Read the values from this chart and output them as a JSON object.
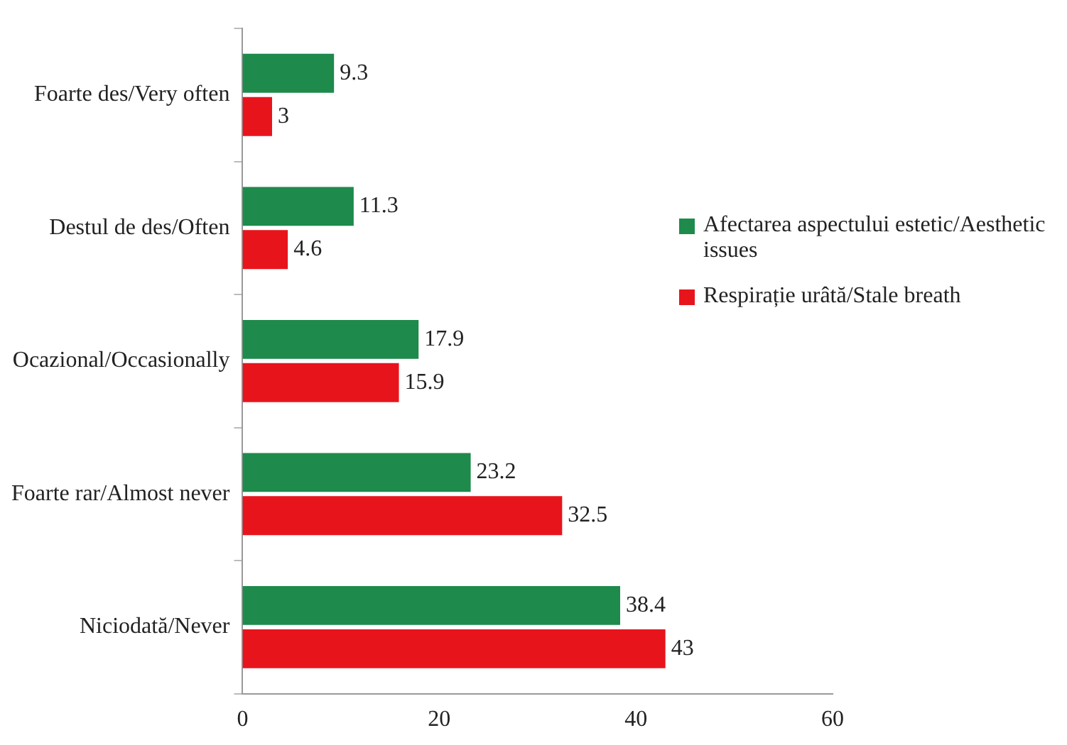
{
  "chart_data": {
    "type": "bar",
    "orientation": "horizontal",
    "categories": [
      "Foarte des/Very often",
      "Destul de des/Often",
      "Ocazional/Occasionally",
      "Foarte rar/Almost never",
      "Niciodată/Never"
    ],
    "series": [
      {
        "name": "Afectarea aspectului estetic/Aesthetic issues",
        "color": "#1e8a4c",
        "values": [
          9.3,
          11.3,
          17.9,
          23.2,
          38.4
        ]
      },
      {
        "name": "Respirație urâtă/Stale breath",
        "color": "#e8141c",
        "values": [
          3,
          4.6,
          15.9,
          32.5,
          43
        ]
      }
    ],
    "xlim": [
      0,
      60
    ],
    "xticks": [
      0,
      20,
      40,
      60
    ],
    "grid": false,
    "legend": "right",
    "data_labels": true
  }
}
